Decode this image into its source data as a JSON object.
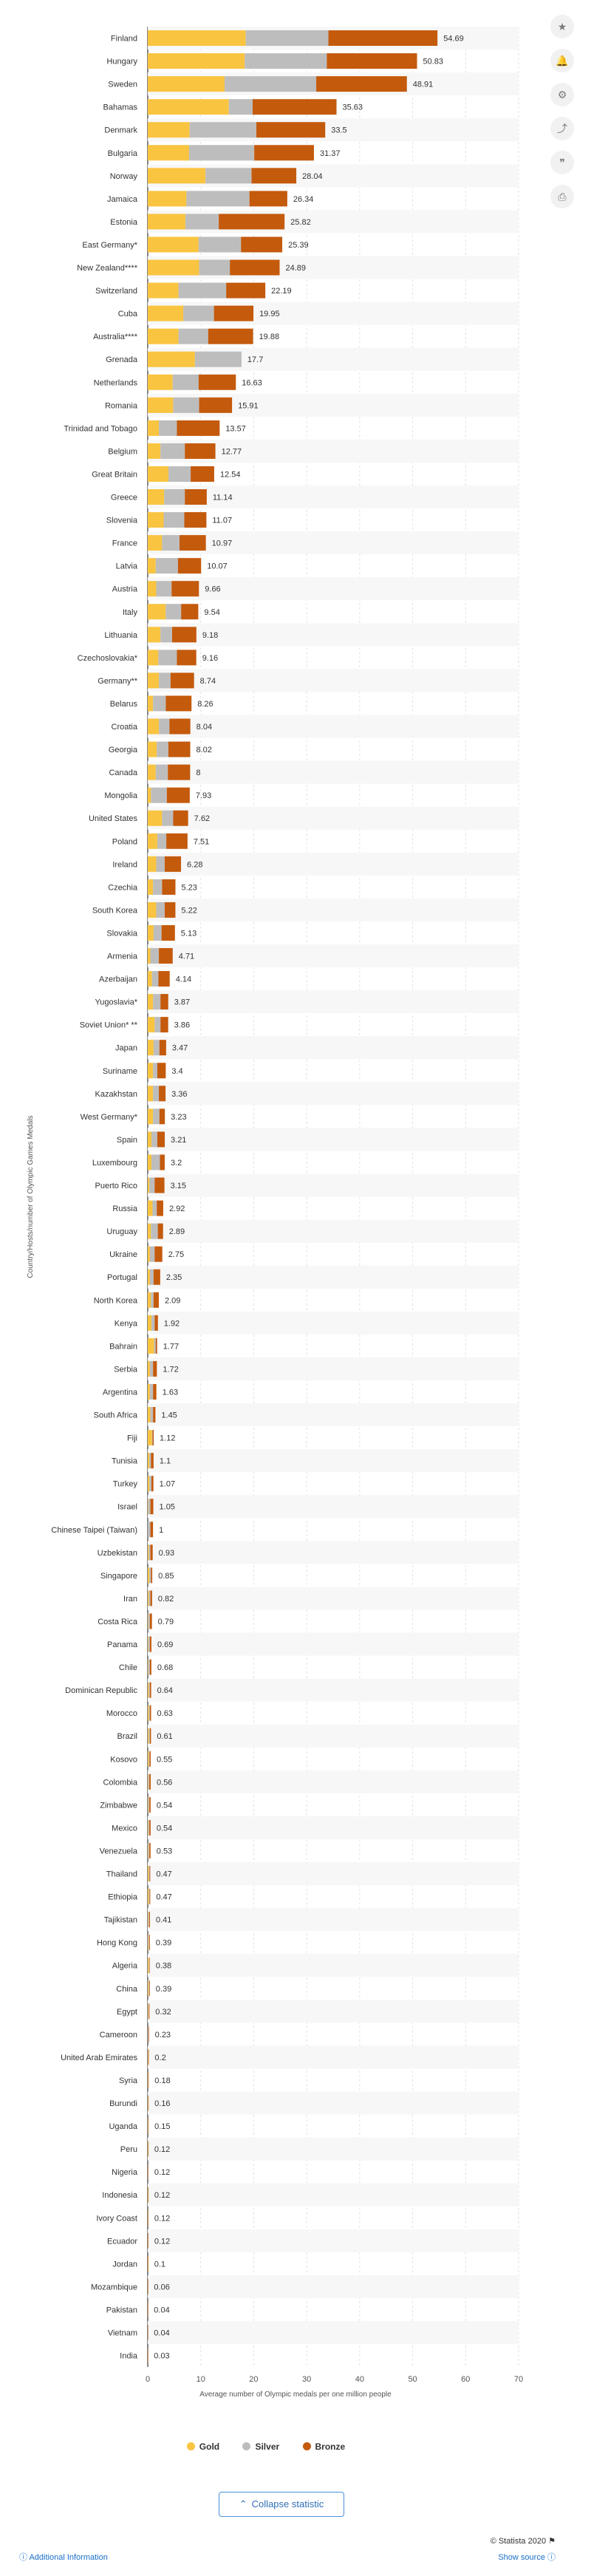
{
  "chart_data": {
    "type": "bar",
    "orientation": "horizontal",
    "stacked": true,
    "title": "",
    "xlabel": "Average number of Olympic medals per one million people",
    "ylabel": "Country/Hosts/number of Olympic Games Medals",
    "xlim": [
      0,
      70
    ],
    "xticks": [
      "0",
      "10",
      "20",
      "30",
      "40",
      "50",
      "60",
      "70"
    ],
    "grid": true,
    "legend_position": "bottom",
    "colors": {
      "Gold": "#f9c440",
      "Silver": "#bdbdbd",
      "Bronze": "#c45a0c"
    },
    "categories": [
      "Finland",
      "Hungary",
      "Sweden",
      "Bahamas",
      "Denmark",
      "Bulgaria",
      "Norway",
      "Jamaica",
      "Estonia",
      "East Germany*",
      "New Zealand****",
      "Switzerland",
      "Cuba",
      "Australia****",
      "Grenada",
      "Netherlands",
      "Romania",
      "Trinidad and Tobago",
      "Belgium",
      "Great Britain",
      "Greece",
      "Slovenia",
      "France",
      "Latvia",
      "Austria",
      "Italy",
      "Lithuania",
      "Czechoslovakia*",
      "Germany**",
      "Belarus",
      "Croatia",
      "Georgia",
      "Canada",
      "Mongolia",
      "United States",
      "Poland",
      "Ireland",
      "Czechia",
      "South Korea",
      "Slovakia",
      "Armenia",
      "Azerbaijan",
      "Yugoslavia*",
      "Soviet Union* **",
      "Japan",
      "Suriname",
      "Kazakhstan",
      "West Germany*",
      "Spain",
      "Luxembourg",
      "Puerto Rico",
      "Russia",
      "Uruguay",
      "Ukraine",
      "Portugal",
      "North Korea",
      "Kenya",
      "Bahrain",
      "Serbia",
      "Argentina",
      "South Africa",
      "Fiji",
      "Tunisia",
      "Turkey",
      "Israel",
      "Chinese Taipei (Taiwan)",
      "Uzbekistan",
      "Singapore",
      "Iran",
      "Costa Rica",
      "Panama",
      "Chile",
      "Dominican Republic",
      "Morocco",
      "Brazil",
      "Kosovo",
      "Colombia",
      "Zimbabwe",
      "Mexico",
      "Venezuela",
      "Thailand",
      "Ethiopia",
      "Tajikistan",
      "Hong Kong",
      "Algeria",
      "China",
      "Egypt",
      "Cameroon",
      "United Arab Emirates",
      "Syria",
      "Burundi",
      "Uganda",
      "Peru",
      "Nigeria",
      "Indonesia",
      "Ivory Coast",
      "Ecuador",
      "Jordan",
      "Mozambique",
      "Pakistan",
      "Vietnam",
      "India"
    ],
    "totals_labels": [
      "54.69",
      "50.83",
      "48.91",
      "35.63",
      "33.5",
      "31.37",
      "28.04",
      "26.34",
      "25.82",
      "25.39",
      "24.89",
      "22.19",
      "19.95",
      "19.88",
      "17.7",
      "16.63",
      "15.91",
      "13.57",
      "12.77",
      "12.54",
      "11.14",
      "11.07",
      "10.97",
      "10.07",
      "9.66",
      "9.54",
      "9.18",
      "9.16",
      "8.74",
      "8.26",
      "8.04",
      "8.02",
      "8",
      "7.93",
      "7.62",
      "7.51",
      "6.28",
      "5.23",
      "5.22",
      "5.13",
      "4.71",
      "4.14",
      "3.87",
      "3.86",
      "3.47",
      "3.4",
      "3.36",
      "3.23",
      "3.21",
      "3.2",
      "3.15",
      "2.92",
      "2.89",
      "2.75",
      "2.35",
      "2.09",
      "1.92",
      "1.77",
      "1.72",
      "1.63",
      "1.45",
      "1.12",
      "1.1",
      "1.07",
      "1.05",
      "1",
      "0.93",
      "0.85",
      "0.82",
      "0.79",
      "0.69",
      "0.68",
      "0.64",
      "0.63",
      "0.61",
      "0.55",
      "0.56",
      "0.54",
      "0.54",
      "0.53",
      "0.47",
      "0.47",
      "0.41",
      "0.39",
      "0.38",
      "0.39",
      "0.32",
      "0.23",
      "0.2",
      "0.18",
      "0.16",
      "0.15",
      "0.12",
      "0.12",
      "0.12",
      "0.12",
      "0.12",
      "0.1",
      "0.06",
      "0.04",
      "0.04",
      "0.03"
    ],
    "series": [
      {
        "name": "Gold",
        "values": [
          18.5,
          18.3,
          14.5,
          15.3,
          7.9,
          7.8,
          10.9,
          7.3,
          7.1,
          9.6,
          9.7,
          5.8,
          6.7,
          5.8,
          8.9,
          4.7,
          4.8,
          2.1,
          2.4,
          3.9,
          3.1,
          3.0,
          2.7,
          1.5,
          1.6,
          3.4,
          2.4,
          2.0,
          2.1,
          1.0,
          2.1,
          1.7,
          1.5,
          0.6,
          2.7,
          1.8,
          1.6,
          1.0,
          1.6,
          1.1,
          0.5,
          0.8,
          1.0,
          1.3,
          1.1,
          1.0,
          1.0,
          1.0,
          0.7,
          0.7,
          0.3,
          0.9,
          0.6,
          0.4,
          0.4,
          0.6,
          0.7,
          1.2,
          0.4,
          0.4,
          0.5,
          0.8,
          0.3,
          0.3,
          0.1,
          0.0,
          0.2,
          0.3,
          0.2,
          0.1,
          0.1,
          0.1,
          0.2,
          0.2,
          0.2,
          0.2,
          0.1,
          0.1,
          0.1,
          0.1,
          0.2,
          0.2,
          0.1,
          0.1,
          0.2,
          0.15,
          0.1,
          0.0,
          0.05,
          0.05,
          0.05,
          0.05,
          0.05,
          0.0,
          0.05,
          0.02,
          0.03,
          0.05,
          0.03,
          0.0,
          0.01,
          0.01
        ]
      },
      {
        "name": "Silver",
        "values": [
          15.6,
          15.5,
          17.3,
          4.5,
          12.6,
          12.3,
          8.7,
          11.9,
          6.3,
          8.0,
          5.8,
          9.0,
          5.8,
          5.6,
          8.8,
          4.9,
          4.9,
          3.4,
          4.6,
          4.2,
          3.9,
          3.9,
          3.3,
          4.2,
          2.9,
          2.9,
          2.2,
          3.5,
          2.2,
          2.4,
          2.0,
          2.2,
          2.3,
          3.0,
          2.1,
          1.7,
          1.6,
          1.7,
          1.6,
          1.5,
          1.6,
          1.2,
          1.4,
          1.1,
          1.1,
          0.8,
          1.1,
          1.2,
          1.1,
          1.6,
          1.0,
          0.8,
          1.3,
          0.9,
          0.7,
          0.5,
          0.6,
          0.3,
          0.6,
          0.6,
          0.5,
          0.1,
          0.3,
          0.4,
          0.4,
          0.5,
          0.3,
          0.3,
          0.3,
          0.3,
          0.3,
          0.3,
          0.2,
          0.2,
          0.2,
          0.15,
          0.2,
          0.2,
          0.2,
          0.2,
          0.15,
          0.15,
          0.15,
          0.15,
          0.1,
          0.12,
          0.1,
          0.1,
          0.05,
          0.05,
          0.05,
          0.05,
          0.04,
          0.05,
          0.04,
          0.05,
          0.04,
          0.03,
          0.02,
          0.02,
          0.01,
          0.01
        ]
      },
      {
        "name": "Bronze",
        "values": [
          20.59,
          17.03,
          17.11,
          15.83,
          13.0,
          11.27,
          8.44,
          7.14,
          12.42,
          7.79,
          9.39,
          7.39,
          7.45,
          8.48,
          0.0,
          7.03,
          6.21,
          8.07,
          5.77,
          4.44,
          4.14,
          4.17,
          4.97,
          4.37,
          5.16,
          3.24,
          4.58,
          3.66,
          4.44,
          4.86,
          3.94,
          4.12,
          4.2,
          4.33,
          2.82,
          4.01,
          3.08,
          2.53,
          2.02,
          2.53,
          2.61,
          2.14,
          1.47,
          1.46,
          1.27,
          1.6,
          1.26,
          1.03,
          1.41,
          0.9,
          1.85,
          1.22,
          0.99,
          1.45,
          1.25,
          0.99,
          0.62,
          0.27,
          0.72,
          0.63,
          0.45,
          0.22,
          0.5,
          0.37,
          0.55,
          0.5,
          0.43,
          0.25,
          0.32,
          0.39,
          0.29,
          0.28,
          0.24,
          0.23,
          0.21,
          0.2,
          0.26,
          0.24,
          0.24,
          0.23,
          0.12,
          0.12,
          0.16,
          0.14,
          0.08,
          0.12,
          0.12,
          0.13,
          0.1,
          0.08,
          0.06,
          0.05,
          0.03,
          0.07,
          0.03,
          0.05,
          0.05,
          0.02,
          0.01,
          0.02,
          0.02,
          0.01
        ]
      }
    ]
  },
  "legend": {
    "gold": "Gold",
    "silver": "Silver",
    "bronze": "Bronze"
  },
  "collapse_label": "Collapse statistic",
  "footer": {
    "credit": "© Statista 2020",
    "show_source": "Show source",
    "additional_info": "Additional Information"
  },
  "tools": [
    "star-icon",
    "bell-icon",
    "gear-icon",
    "share-icon",
    "quote-icon",
    "print-icon"
  ]
}
